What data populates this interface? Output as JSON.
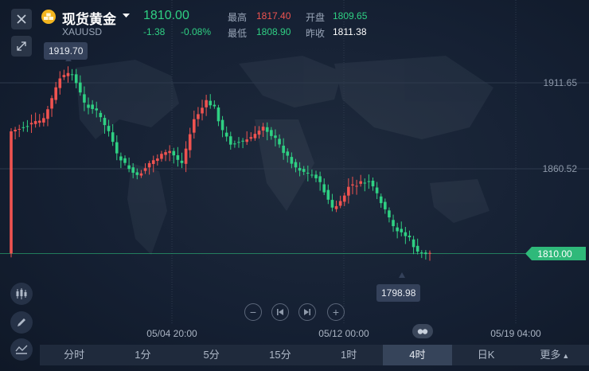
{
  "header": {
    "title": "现货黄金",
    "symbol": "XAUUSD",
    "price": "1810.00",
    "change": "-1.38",
    "change_pct": "-0.08%",
    "stats": {
      "high_label": "最高",
      "high": "1817.40",
      "open_label": "开盘",
      "open": "1809.65",
      "low_label": "最低",
      "low": "1808.90",
      "prev_close_label": "昨收",
      "prev_close": "1811.38"
    }
  },
  "chart": {
    "price_labels": {
      "p1": "1911.65",
      "p2": "1860.52"
    },
    "current_price_tag": "1810.00",
    "max_tip": "1919.70",
    "min_tip": "1798.98",
    "date_labels": {
      "d1": "05/04 20:00",
      "d2": "05/12 00:00",
      "d3": "05/19 04:00"
    }
  },
  "timeframes": [
    {
      "label": "分时",
      "active": false
    },
    {
      "label": "1分",
      "active": false
    },
    {
      "label": "5分",
      "active": false
    },
    {
      "label": "15分",
      "active": false
    },
    {
      "label": "1时",
      "active": false
    },
    {
      "label": "4时",
      "active": true
    },
    {
      "label": "日K",
      "active": false
    },
    {
      "label": "更多",
      "active": false
    }
  ],
  "colors": {
    "up": "#ef5350",
    "down": "#2fd083",
    "background": "#152033"
  },
  "chart_data": {
    "type": "candlestick",
    "y_ticks": [
      1911.65,
      1860.52
    ],
    "current_price": 1810.0,
    "high_marker": 1919.7,
    "low_marker": 1798.98
  }
}
